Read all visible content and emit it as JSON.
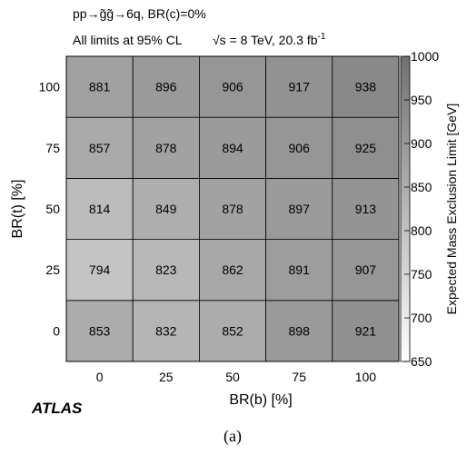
{
  "chart_data": {
    "type": "heatmap",
    "header_line1": "pp→g̃g̃→6q, BR(c)=0%",
    "header_line2_cl": "All limits at 95% CL",
    "header_line2_sqrt": "√s = 8 TeV, 20.3 fb",
    "header_line2_sup": "-1",
    "xlabel": "BR(b) [%]",
    "ylabel": "BR(t) [%]",
    "x_categories": [
      "0",
      "25",
      "50",
      "75",
      "100"
    ],
    "y_categories": [
      "0",
      "25",
      "50",
      "75",
      "100"
    ],
    "values": [
      [
        853,
        832,
        852,
        898,
        921
      ],
      [
        794,
        823,
        862,
        891,
        907
      ],
      [
        814,
        849,
        878,
        897,
        913
      ],
      [
        857,
        878,
        894,
        906,
        925
      ],
      [
        881,
        896,
        906,
        917,
        938
      ]
    ],
    "colorbar": {
      "label": "Expected Mass Exclusion Limit [GeV]",
      "range": [
        650,
        1000
      ],
      "ticks": [
        "650",
        "700",
        "750",
        "800",
        "850",
        "900",
        "950",
        "1000"
      ]
    },
    "experiment_label": "ATLAS",
    "panel_label": "(a)"
  }
}
